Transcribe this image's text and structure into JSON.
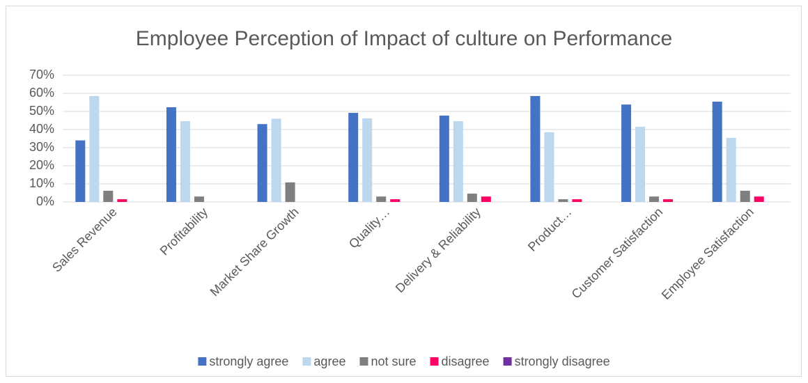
{
  "chart_data": {
    "type": "bar",
    "title": "Employee Perception of Impact of culture on Performance",
    "categories": [
      "Sales Revenue",
      "Profitability",
      "Market Share Growth",
      "Quality…",
      "Delivery & Reliability",
      "Product…",
      "Customer Satisfaction",
      "Employee Satisfaction"
    ],
    "series": [
      {
        "name": "strongly agree",
        "color": "#4472c4",
        "values": [
          34,
          52.3,
          43,
          49.2,
          47.7,
          58.5,
          53.8,
          55.4
        ]
      },
      {
        "name": "agree",
        "color": "#bdd7ee",
        "values": [
          58.5,
          44.6,
          46,
          46.2,
          44.6,
          38.5,
          41.5,
          35.4
        ]
      },
      {
        "name": "not sure",
        "color": "#7f7f7f",
        "values": [
          6.2,
          3,
          10.8,
          3,
          4.6,
          1.5,
          3,
          6.2
        ]
      },
      {
        "name": "disagree",
        "color": "#ff0066",
        "values": [
          1.5,
          0,
          0,
          1.5,
          3,
          1.5,
          1.5,
          3
        ]
      },
      {
        "name": "strongly disagree",
        "color": "#7030a0",
        "values": [
          0,
          0,
          0,
          0,
          0,
          0,
          0,
          0
        ]
      }
    ],
    "ylim": [
      0,
      70
    ],
    "yticks": [
      {
        "value": 0,
        "label": "0%"
      },
      {
        "value": 10,
        "label": "10%"
      },
      {
        "value": 20,
        "label": "20%"
      },
      {
        "value": 30,
        "label": "30%"
      },
      {
        "value": 40,
        "label": "40%"
      },
      {
        "value": 50,
        "label": "50%"
      },
      {
        "value": 60,
        "label": "60%"
      },
      {
        "value": 70,
        "label": "70%"
      }
    ],
    "grid": true,
    "legend": "bottom"
  }
}
